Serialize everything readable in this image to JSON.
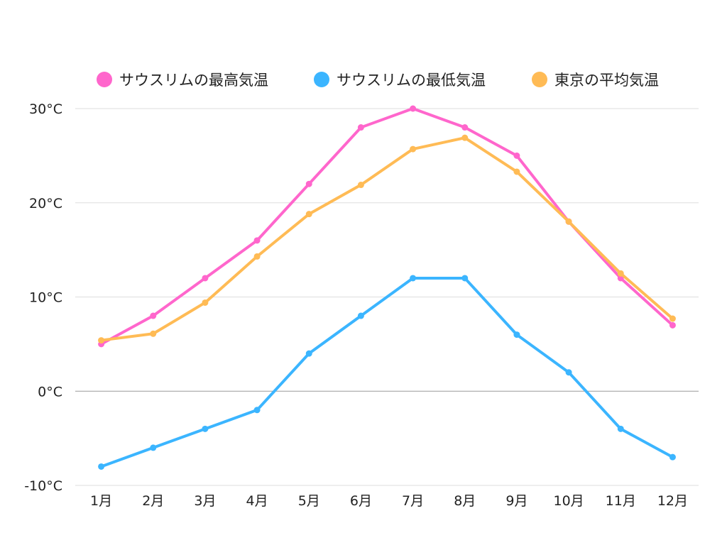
{
  "chart_data": {
    "type": "line",
    "title": "",
    "xlabel": "",
    "ylabel": "",
    "categories": [
      "1月",
      "2月",
      "3月",
      "4月",
      "5月",
      "6月",
      "7月",
      "8月",
      "9月",
      "10月",
      "11月",
      "12月"
    ],
    "series": [
      {
        "name": "サウスリムの最高気温",
        "color": "#ff66cc",
        "values": [
          5,
          8,
          12,
          16,
          22,
          28,
          30,
          28,
          25,
          18,
          12,
          7
        ]
      },
      {
        "name": "サウスリムの最低気温",
        "color": "#3bb5ff",
        "values": [
          -8,
          -6,
          -4,
          -2,
          4,
          8,
          12,
          12,
          6,
          2,
          -4,
          -7
        ]
      },
      {
        "name": "東京の平均気温",
        "color": "#ffbb55",
        "values": [
          5.4,
          6.1,
          9.4,
          14.3,
          18.8,
          21.9,
          25.7,
          26.9,
          23.3,
          18.0,
          12.5,
          7.7
        ]
      }
    ],
    "ylim": [
      -10,
      30
    ],
    "yticks": [
      -10,
      0,
      10,
      20,
      30
    ],
    "ytick_labels": [
      "-10°C",
      "0°C",
      "10°C",
      "20°C",
      "30°C"
    ],
    "grid": true,
    "legend_position": "top-center"
  }
}
